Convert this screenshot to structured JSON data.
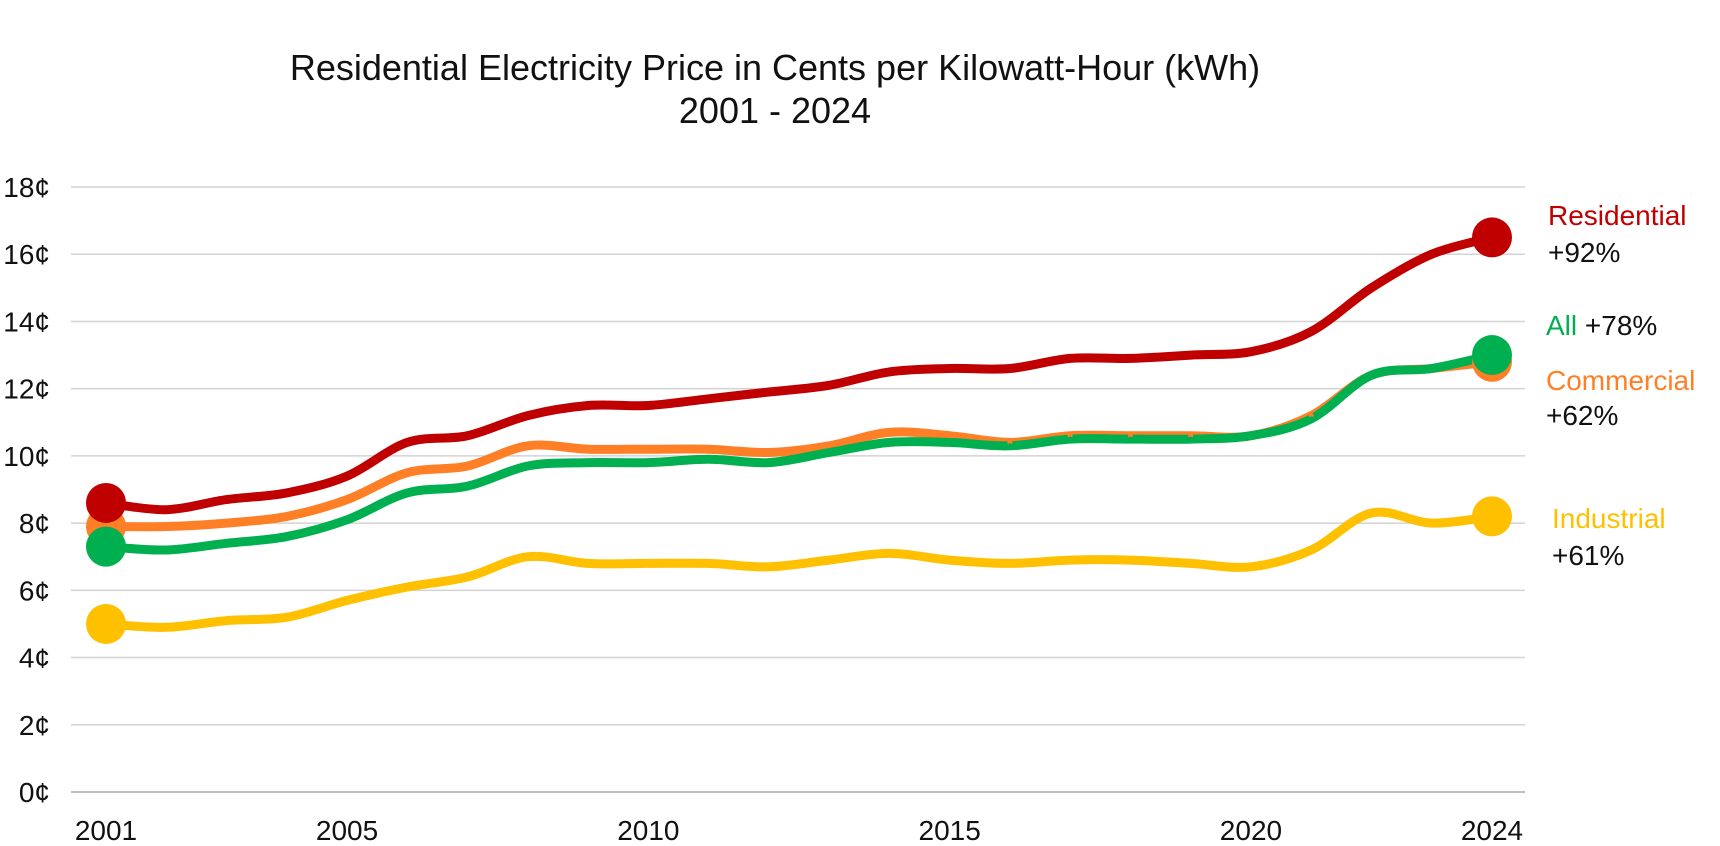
{
  "chart_data": {
    "type": "line",
    "title": "Residential Electricity Price in Cents per Kilowatt-Hour (kWh)",
    "subtitle": "2001 - 2024",
    "xlabel": "",
    "ylabel": "",
    "x": [
      2001,
      2002,
      2003,
      2004,
      2005,
      2006,
      2007,
      2008,
      2009,
      2010,
      2011,
      2012,
      2013,
      2014,
      2015,
      2016,
      2017,
      2018,
      2019,
      2020,
      2021,
      2022,
      2023,
      2024
    ],
    "x_ticks": [
      "2001",
      "2005",
      "2010",
      "2015",
      "2020",
      "2024"
    ],
    "x_tick_values": [
      2001,
      2005,
      2010,
      2015,
      2020,
      2024
    ],
    "y_ticks": [
      "0¢",
      "2¢",
      "4¢",
      "6¢",
      "8¢",
      "10¢",
      "12¢",
      "14¢",
      "16¢",
      "18¢"
    ],
    "y_tick_values": [
      0,
      2,
      4,
      6,
      8,
      10,
      12,
      14,
      16,
      18
    ],
    "ylim": [
      0,
      18
    ],
    "grid": true,
    "legend": "end-of-line labels (right)",
    "series": [
      {
        "name": "Residential",
        "change": "+92%",
        "color": "#c00000",
        "values": [
          8.6,
          8.4,
          8.7,
          8.9,
          9.4,
          10.4,
          10.6,
          11.2,
          11.5,
          11.5,
          11.7,
          11.9,
          12.1,
          12.5,
          12.6,
          12.6,
          12.9,
          12.9,
          13.0,
          13.1,
          13.7,
          15.0,
          16.0,
          16.5
        ]
      },
      {
        "name": "All",
        "change": "+78%",
        "color": "#00b050",
        "values": [
          7.3,
          7.2,
          7.4,
          7.6,
          8.1,
          8.9,
          9.1,
          9.7,
          9.8,
          9.8,
          9.9,
          9.8,
          10.1,
          10.4,
          10.4,
          10.3,
          10.5,
          10.5,
          10.5,
          10.6,
          11.1,
          12.4,
          12.6,
          13.0
        ]
      },
      {
        "name": "Commercial",
        "change": "+62%",
        "color": "#ff7f27",
        "values": [
          7.9,
          7.9,
          8.0,
          8.2,
          8.7,
          9.5,
          9.7,
          10.3,
          10.2,
          10.2,
          10.2,
          10.1,
          10.3,
          10.7,
          10.6,
          10.4,
          10.6,
          10.6,
          10.6,
          10.6,
          11.2,
          12.4,
          12.6,
          12.8
        ]
      },
      {
        "name": "Industrial",
        "change": "+61%",
        "color": "#ffc000",
        "values": [
          5.0,
          4.9,
          5.1,
          5.2,
          5.7,
          6.1,
          6.4,
          7.0,
          6.8,
          6.8,
          6.8,
          6.7,
          6.9,
          7.1,
          6.9,
          6.8,
          6.9,
          6.9,
          6.8,
          6.7,
          7.2,
          8.3,
          8.0,
          8.2
        ]
      }
    ]
  }
}
